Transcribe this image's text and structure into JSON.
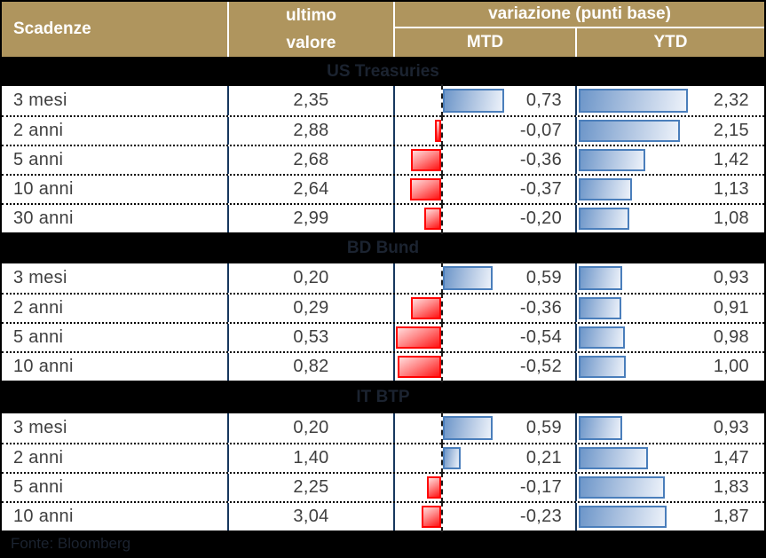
{
  "header": {
    "scadenze": "Scadenze",
    "ultimo_line1": "ultimo",
    "ultimo_line2": "valore",
    "variazione": "variazione (punti base)",
    "mtd": "MTD",
    "ytd": "YTD"
  },
  "sections": [
    {
      "id": "us-treasuries",
      "name": "US Treasuries",
      "rows": [
        {
          "label": "3 mesi",
          "ultimo": "2,35",
          "mtd": "0,73",
          "mtd_v": 0.73,
          "ytd": "2,32",
          "ytd_v": 2.32
        },
        {
          "label": "2 anni",
          "ultimo": "2,88",
          "mtd": "-0,07",
          "mtd_v": -0.07,
          "ytd": "2,15",
          "ytd_v": 2.15
        },
        {
          "label": "5 anni",
          "ultimo": "2,68",
          "mtd": "-0,36",
          "mtd_v": -0.36,
          "ytd": "1,42",
          "ytd_v": 1.42
        },
        {
          "label": "10 anni",
          "ultimo": "2,64",
          "mtd": "-0,37",
          "mtd_v": -0.37,
          "ytd": "1,13",
          "ytd_v": 1.13
        },
        {
          "label": "30 anni",
          "ultimo": "2,99",
          "mtd": "-0,20",
          "mtd_v": -0.2,
          "ytd": "1,08",
          "ytd_v": 1.08
        }
      ]
    },
    {
      "id": "bd-bund",
      "name": "BD Bund",
      "rows": [
        {
          "label": "3 mesi",
          "ultimo": "0,20",
          "mtd": "0,59",
          "mtd_v": 0.59,
          "ytd": "0,93",
          "ytd_v": 0.93
        },
        {
          "label": "2 anni",
          "ultimo": "0,29",
          "mtd": "-0,36",
          "mtd_v": -0.36,
          "ytd": "0,91",
          "ytd_v": 0.91
        },
        {
          "label": "5 anni",
          "ultimo": "0,53",
          "mtd": "-0,54",
          "mtd_v": -0.54,
          "ytd": "0,98",
          "ytd_v": 0.98
        },
        {
          "label": "10 anni",
          "ultimo": "0,82",
          "mtd": "-0,52",
          "mtd_v": -0.52,
          "ytd": "1,00",
          "ytd_v": 1.0
        }
      ]
    },
    {
      "id": "it-btp",
      "name": "IT BTP",
      "rows": [
        {
          "label": "3 mesi",
          "ultimo": "0,20",
          "mtd": "0,59",
          "mtd_v": 0.59,
          "ytd": "0,93",
          "ytd_v": 0.93
        },
        {
          "label": "2 anni",
          "ultimo": "1,40",
          "mtd": "0,21",
          "mtd_v": 0.21,
          "ytd": "1,47",
          "ytd_v": 1.47
        },
        {
          "label": "5 anni",
          "ultimo": "2,25",
          "mtd": "-0,17",
          "mtd_v": -0.17,
          "ytd": "1,83",
          "ytd_v": 1.83
        },
        {
          "label": "10 anni",
          "ultimo": "3,04",
          "mtd": "-0,23",
          "mtd_v": -0.23,
          "ytd": "1,87",
          "ytd_v": 1.87
        }
      ]
    }
  ],
  "footer": {
    "source": "Fonte: Bloomberg"
  },
  "colors": {
    "header_gold": "#AF955E",
    "divider_navy": "#17375E",
    "bar_blue_border": "#4A7EBB",
    "bar_blue_fill_start": "#6D96C9",
    "bar_blue_fill_end": "#EDF2FA",
    "bar_red_border": "#FF0000",
    "bar_red_fill_start": "#FFDCDC",
    "bar_red_fill_end": "#FF1414",
    "section_bar_bg": "#000000",
    "section_bar_text": "#1B2330",
    "data_text": "#3F3F3F",
    "header_text": "#FFFFFF"
  },
  "chart_data": {
    "type": "table",
    "title": "Scadenze — ultimo valore / variazione (punti base)",
    "columns": [
      "Scadenze",
      "ultimo valore",
      "variazione MTD (punti base)",
      "variazione YTD (punti base)"
    ],
    "bar_columns": [
      "MTD",
      "YTD"
    ],
    "legend_position": "none",
    "sections": [
      {
        "name": "US Treasuries",
        "rows": [
          [
            "3 mesi",
            2.35,
            0.73,
            2.32
          ],
          [
            "2 anni",
            2.88,
            -0.07,
            2.15
          ],
          [
            "5 anni",
            2.68,
            -0.36,
            1.42
          ],
          [
            "10 anni",
            2.64,
            -0.37,
            1.13
          ],
          [
            "30 anni",
            2.99,
            -0.2,
            1.08
          ]
        ]
      },
      {
        "name": "BD Bund",
        "rows": [
          [
            "3 mesi",
            0.2,
            0.59,
            0.93
          ],
          [
            "2 anni",
            0.29,
            -0.36,
            0.91
          ],
          [
            "5 anni",
            0.53,
            -0.54,
            0.98
          ],
          [
            "10 anni",
            0.82,
            -0.52,
            1.0
          ]
        ]
      },
      {
        "name": "IT BTP",
        "rows": [
          [
            "3 mesi",
            0.2,
            0.59,
            0.93
          ],
          [
            "2 anni",
            1.4,
            0.21,
            1.47
          ],
          [
            "5 anni",
            2.25,
            -0.17,
            1.83
          ],
          [
            "10 anni",
            3.04,
            -0.23,
            1.87
          ]
        ]
      }
    ],
    "source": "Fonte: Bloomberg"
  }
}
